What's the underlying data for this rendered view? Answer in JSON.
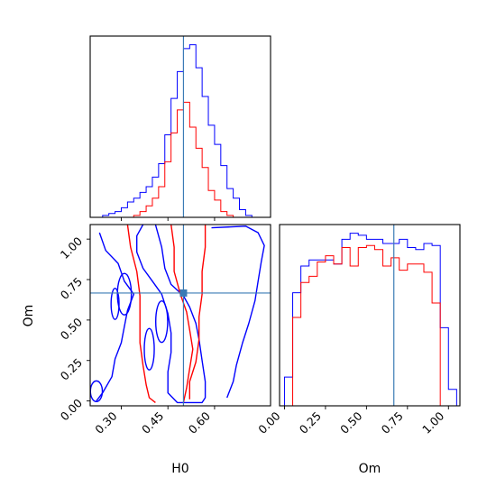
{
  "chart_data": [
    {
      "type": "histogram",
      "panel": "H0 marginal",
      "xlim": [
        0.2,
        0.78
      ],
      "truth": 0.5,
      "xticks": [
        0.3,
        0.45,
        0.6
      ],
      "series": [
        {
          "color": "#0000ff",
          "x": [
            0.2,
            0.22,
            0.24,
            0.26,
            0.28,
            0.3,
            0.32,
            0.34,
            0.36,
            0.38,
            0.4,
            0.42,
            0.44,
            0.46,
            0.48,
            0.5,
            0.52,
            0.54,
            0.56,
            0.58,
            0.6,
            0.62,
            0.64,
            0.66,
            0.68,
            0.7,
            0.72,
            0.74,
            0.76
          ],
          "counts": [
            0,
            0,
            1,
            2,
            3,
            5,
            8,
            10,
            13,
            16,
            21,
            28,
            43,
            62,
            76,
            88,
            90,
            78,
            63,
            48,
            38,
            27,
            15,
            10,
            4,
            1,
            0,
            0,
            0
          ]
        },
        {
          "color": "#ff0000",
          "x": [
            0.2,
            0.22,
            0.24,
            0.26,
            0.28,
            0.3,
            0.32,
            0.34,
            0.36,
            0.38,
            0.4,
            0.42,
            0.44,
            0.46,
            0.48,
            0.5,
            0.52,
            0.54,
            0.56,
            0.58,
            0.6,
            0.62,
            0.64,
            0.66,
            0.68,
            0.7,
            0.72,
            0.74,
            0.76
          ],
          "counts": [
            0,
            0,
            0,
            0,
            0,
            0,
            0,
            1,
            3,
            6,
            10,
            16,
            29,
            44,
            56,
            60,
            47,
            36,
            26,
            14,
            9,
            3,
            1,
            0,
            0,
            0,
            0,
            0,
            0
          ]
        }
      ]
    },
    {
      "type": "histogram",
      "panel": "Om marginal",
      "xlim": [
        -0.03,
        1.07
      ],
      "truth": 0.667,
      "xticks": [
        0.0,
        0.25,
        0.5,
        0.75,
        1.0
      ],
      "xticklabels": [
        "0.00",
        "0.25",
        "0.50",
        "0.75",
        "1.00"
      ],
      "xlabel": "Om",
      "series": [
        {
          "color": "#0000ff",
          "x": [
            0.0,
            0.05,
            0.1,
            0.15,
            0.2,
            0.25,
            0.3,
            0.35,
            0.4,
            0.45,
            0.5,
            0.55,
            0.6,
            0.65,
            0.7,
            0.75,
            0.8,
            0.85,
            0.9,
            0.95,
            1.0
          ],
          "counts": [
            14,
            55,
            68,
            71,
            71,
            71,
            69,
            81,
            84,
            83,
            81,
            81,
            79,
            79,
            81,
            77,
            76,
            79,
            78,
            38,
            8
          ]
        },
        {
          "color": "#ff0000",
          "x": [
            0.0,
            0.05,
            0.1,
            0.15,
            0.2,
            0.25,
            0.3,
            0.35,
            0.4,
            0.45,
            0.5,
            0.55,
            0.6,
            0.65,
            0.7,
            0.75,
            0.8,
            0.85,
            0.9,
            0.95,
            1.0
          ],
          "counts": [
            0,
            43,
            60,
            63,
            70,
            73,
            69,
            77,
            68,
            77,
            78,
            76,
            68,
            72,
            66,
            69,
            69,
            65,
            50,
            0,
            0
          ]
        }
      ]
    },
    {
      "type": "contour",
      "panel": "Om vs H0",
      "xlabel": "H0",
      "ylabel": "Om",
      "xlim": [
        0.2,
        0.78
      ],
      "ylim": [
        -0.03,
        1.09
      ],
      "truth": {
        "x": 0.5,
        "y": 0.667
      },
      "xticks": [
        0.3,
        0.45,
        0.6
      ],
      "xticklabels": [
        "0.30",
        "0.45",
        "0.60"
      ],
      "yticks": [
        0.0,
        0.25,
        0.5,
        0.75,
        1.0
      ],
      "yticklabels": [
        "0.00",
        "0.25",
        "0.50",
        "0.75",
        "1.00"
      ],
      "series": [
        {
          "color": "#0000ff",
          "level": "outer",
          "points": [
            [
              0.41,
              1.09
            ],
            [
              0.43,
              0.95
            ],
            [
              0.44,
              0.82
            ],
            [
              0.46,
              0.72
            ],
            [
              0.5,
              0.65
            ],
            [
              0.52,
              0.58
            ],
            [
              0.54,
              0.48
            ],
            [
              0.55,
              0.38
            ],
            [
              0.56,
              0.25
            ],
            [
              0.57,
              0.12
            ],
            [
              0.57,
              0.02
            ],
            [
              0.56,
              -0.01
            ],
            [
              0.48,
              -0.01
            ],
            [
              0.45,
              0.05
            ],
            [
              0.45,
              0.18
            ],
            [
              0.46,
              0.3
            ],
            [
              0.46,
              0.42
            ],
            [
              0.45,
              0.54
            ],
            [
              0.43,
              0.66
            ],
            [
              0.4,
              0.74
            ],
            [
              0.37,
              0.82
            ],
            [
              0.35,
              0.92
            ],
            [
              0.35,
              1.02
            ],
            [
              0.37,
              1.09
            ]
          ]
        },
        {
          "color": "#0000ff",
          "level": "outer",
          "points": [
            [
              0.23,
              1.04
            ],
            [
              0.25,
              0.93
            ],
            [
              0.29,
              0.85
            ],
            [
              0.31,
              0.74
            ],
            [
              0.34,
              0.66
            ],
            [
              0.32,
              0.56
            ],
            [
              0.31,
              0.46
            ],
            [
              0.3,
              0.36
            ],
            [
              0.28,
              0.26
            ],
            [
              0.27,
              0.15
            ],
            [
              0.24,
              0.05
            ],
            [
              0.22,
              0.0
            ]
          ]
        },
        {
          "color": "#0000ff",
          "level": "outer",
          "points": [
            [
              0.59,
              1.07
            ],
            [
              0.7,
              1.08
            ],
            [
              0.74,
              1.04
            ],
            [
              0.76,
              0.96
            ],
            [
              0.75,
              0.86
            ],
            [
              0.74,
              0.74
            ],
            [
              0.73,
              0.62
            ],
            [
              0.71,
              0.48
            ],
            [
              0.69,
              0.36
            ],
            [
              0.67,
              0.22
            ],
            [
              0.66,
              0.12
            ],
            [
              0.64,
              0.02
            ]
          ]
        },
        {
          "color": "#ff0000",
          "level": "inner",
          "points": [
            [
              0.32,
              1.09
            ],
            [
              0.33,
              0.95
            ],
            [
              0.35,
              0.8
            ],
            [
              0.36,
              0.65
            ],
            [
              0.36,
              0.52
            ],
            [
              0.36,
              0.36
            ],
            [
              0.37,
              0.22
            ],
            [
              0.38,
              0.1
            ],
            [
              0.39,
              0.02
            ],
            [
              0.41,
              -0.01
            ]
          ]
        },
        {
          "color": "#ff0000",
          "level": "inner",
          "points": [
            [
              0.46,
              1.09
            ],
            [
              0.47,
              0.95
            ],
            [
              0.47,
              0.8
            ],
            [
              0.49,
              0.66
            ],
            [
              0.51,
              0.55
            ],
            [
              0.52,
              0.44
            ],
            [
              0.53,
              0.32
            ],
            [
              0.52,
              0.2
            ],
            [
              0.51,
              0.08
            ],
            [
              0.5,
              -0.01
            ]
          ]
        },
        {
          "color": "#ff0000",
          "level": "inner",
          "points": [
            [
              0.57,
              1.09
            ],
            [
              0.57,
              0.95
            ],
            [
              0.56,
              0.8
            ],
            [
              0.56,
              0.66
            ],
            [
              0.55,
              0.52
            ],
            [
              0.55,
              0.38
            ],
            [
              0.54,
              0.24
            ],
            [
              0.52,
              0.12
            ],
            [
              0.52,
              0.01
            ]
          ]
        }
      ]
    }
  ]
}
